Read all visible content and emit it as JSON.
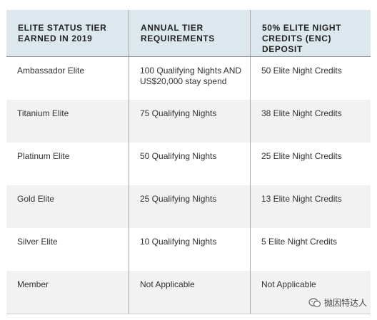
{
  "table": {
    "headers": [
      [
        "ELITE STATUS TIER",
        "EARNED IN 2019"
      ],
      [
        "ANNUAL TIER",
        "REQUIREMENTS"
      ],
      [
        "50% ELITE NIGHT",
        "CREDITS (ENC) DEPOSIT"
      ]
    ],
    "rows": [
      {
        "tier": "Ambassador Elite",
        "requirement": [
          "100 Qualifying Nights AND",
          "US$20,000 stay spend"
        ],
        "deposit": "50 Elite Night Credits"
      },
      {
        "tier": "Titanium Elite",
        "requirement": [
          "75 Qualifying Nights",
          ""
        ],
        "deposit": "38 Elite Night Credits"
      },
      {
        "tier": "Platinum Elite",
        "requirement": [
          "50 Qualifying Nights",
          ""
        ],
        "deposit": "25 Elite Night Credits"
      },
      {
        "tier": "Gold Elite",
        "requirement": [
          "25 Qualifying Nights",
          ""
        ],
        "deposit": "13 Elite Night Credits"
      },
      {
        "tier": "Silver Elite",
        "requirement": [
          "10 Qualifying Nights",
          ""
        ],
        "deposit": "5 Elite Night Credits"
      },
      {
        "tier": "Member",
        "requirement": [
          "Not Applicable",
          ""
        ],
        "deposit": "Not Applicable"
      }
    ]
  },
  "watermark": {
    "text": "抛因特达人",
    "icon": "wechat-icon"
  }
}
